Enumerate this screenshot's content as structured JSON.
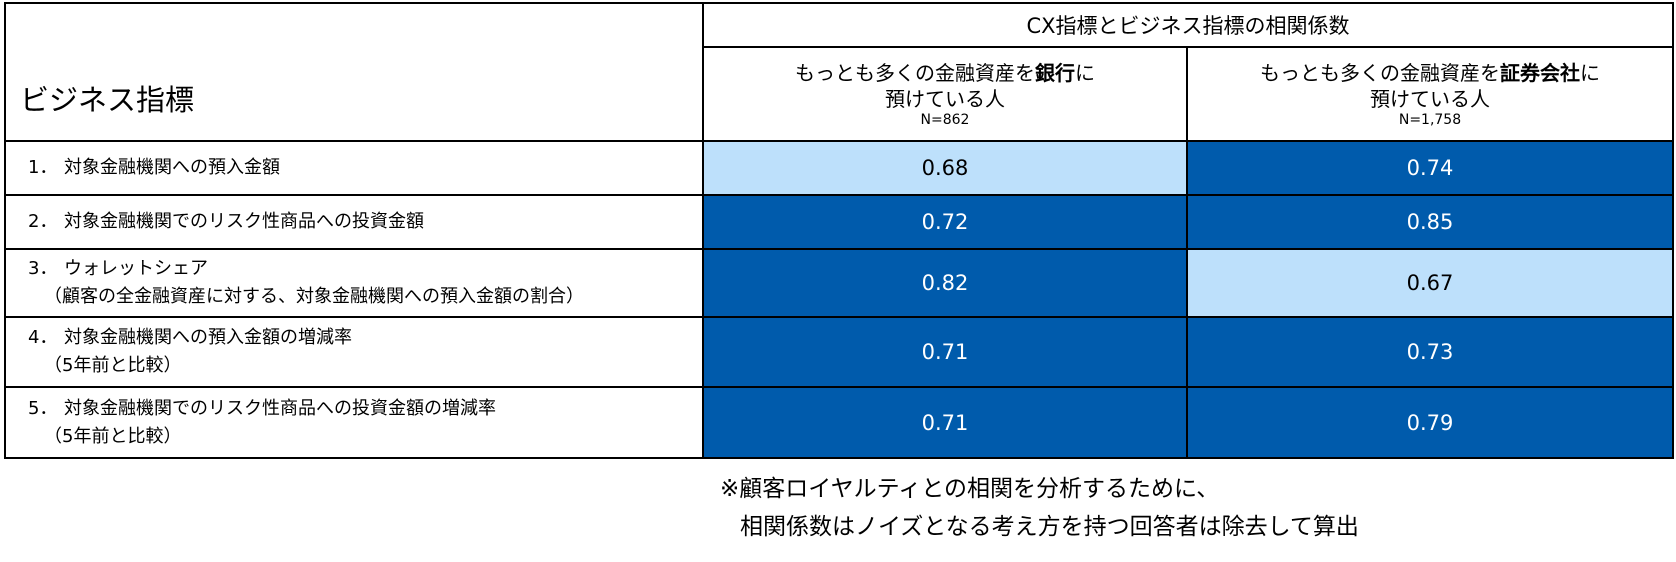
{
  "table": {
    "row_header_label": "ビジネス指標",
    "column_group_title": "CX指標とビジネス指標の相関係数",
    "groups": [
      {
        "prefix": "もっとも多くの金融資産を",
        "bold": "銀行",
        "suffix": "に",
        "line2": "預けている人",
        "n": "N=862"
      },
      {
        "prefix": "もっとも多くの金融資産を",
        "bold": "証券会社",
        "suffix": "に",
        "line2": "預けている人",
        "n": "N=1,758"
      }
    ],
    "rows": [
      {
        "num": "1．",
        "label": "対象金融機関への預入金額",
        "sub": "",
        "bank": "0.68",
        "sec": "0.74"
      },
      {
        "num": "2．",
        "label": "対象金融機関でのリスク性商品への投資金額",
        "sub": "",
        "bank": "0.72",
        "sec": "0.85"
      },
      {
        "num": "3．",
        "label": "ウォレットシェア",
        "sub": "（顧客の全金融資産に対する、対象金融機関への預入金額の割合）",
        "bank": "0.82",
        "sec": "0.67"
      },
      {
        "num": "4．",
        "label": "対象金融機関への預入金額の増減率",
        "sub": "（5年前と比較）",
        "bank": "0.71",
        "sec": "0.73"
      },
      {
        "num": "5．",
        "label": "対象金融機関でのリスク性商品への投資金額の増減率",
        "sub": "（5年前と比較）",
        "bank": "0.71",
        "sec": "0.79"
      }
    ]
  },
  "note": {
    "line1": "※顧客ロイヤルティとの相関を分析するために、",
    "line2": "相関係数はノイズとなる考え方を持つ回答者は除去して算出"
  },
  "colors": {
    "high": "#005bac",
    "low": "#bde0fb"
  }
}
